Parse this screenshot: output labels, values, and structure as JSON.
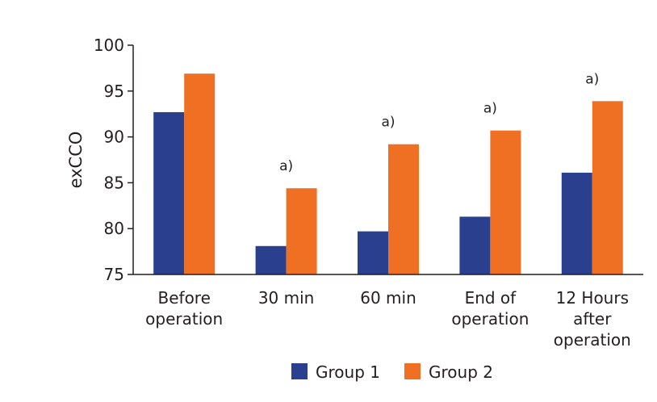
{
  "chart_data": {
    "type": "bar",
    "title": "",
    "xlabel": "",
    "ylabel": "exCCO",
    "ylim": [
      75,
      100
    ],
    "yticks": [
      75,
      80,
      85,
      90,
      95,
      100
    ],
    "grid": false,
    "legend_position": "bottom",
    "categories": [
      [
        "Before",
        "operation"
      ],
      [
        "30 min"
      ],
      [
        "60 min"
      ],
      [
        "End of",
        "operation"
      ],
      [
        "12 Hours",
        "after",
        "operation"
      ]
    ],
    "series": [
      {
        "name": "Group 1",
        "color": "#2a3f8e",
        "values": [
          92.7,
          78.1,
          79.7,
          81.3,
          86.1
        ]
      },
      {
        "name": "Group 2",
        "color": "#f07023",
        "values": [
          96.9,
          84.4,
          89.2,
          90.7,
          93.9
        ]
      }
    ],
    "annotations": [
      {
        "category_index": 1,
        "text": "a)"
      },
      {
        "category_index": 2,
        "text": "a)"
      },
      {
        "category_index": 3,
        "text": "a)"
      },
      {
        "category_index": 4,
        "text": "a)"
      }
    ]
  }
}
